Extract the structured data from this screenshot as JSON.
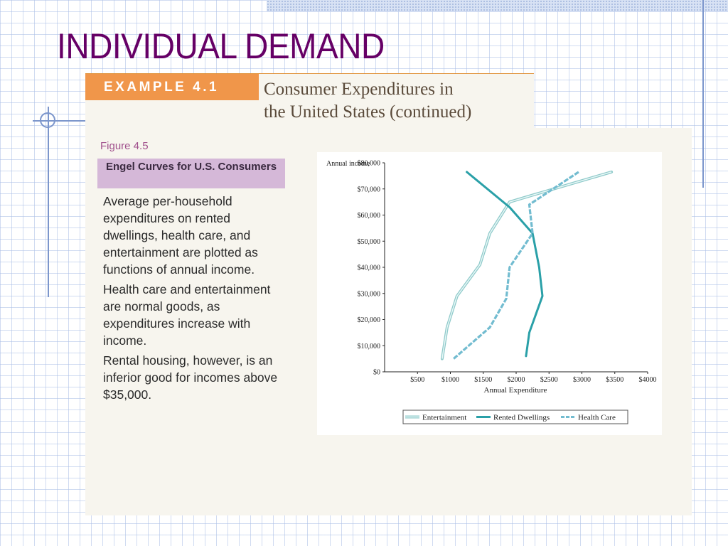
{
  "slide": {
    "title": "INDIVIDUAL DEMAND",
    "example_label": "EXAMPLE 4.1",
    "example_title_line1": "Consumer Expenditures in",
    "example_title_line2": "the United States (continued)",
    "figure_number": "Figure 4.5",
    "figure_caption": "Engel Curves for U.S. Consumers",
    "paragraphs": [
      "Average per-household expenditures on rented dwellings, health care, and entertainment are plotted as functions of annual income.",
      "Health care and entertainment are normal goods, as expenditures increase with income.",
      "Rental housing, however, is an inferior good for incomes above $35,000."
    ]
  },
  "chart_data": {
    "type": "line",
    "xlabel": "Annual Expenditure",
    "ylabel": "Annual income",
    "xlim": [
      0,
      4000
    ],
    "ylim": [
      0,
      80000
    ],
    "x_ticks": [
      500,
      1000,
      1500,
      2000,
      2500,
      3000,
      3500,
      4000
    ],
    "x_tick_labels": [
      "$500",
      "$1000",
      "$1500",
      "$2000",
      "$2500",
      "$3000",
      "$3500",
      "$4000"
    ],
    "y_ticks": [
      0,
      10000,
      20000,
      30000,
      40000,
      50000,
      60000,
      70000,
      80000
    ],
    "y_tick_labels": [
      "$0",
      "$10,000",
      "$20,000",
      "$30,000",
      "$40,000",
      "$50,000",
      "$60,000",
      "$70,000",
      "$80,000"
    ],
    "legend_position": "bottom",
    "series": [
      {
        "name": "Entertainment",
        "style": "solid-light",
        "color": "#9fd8d8",
        "points": [
          [
            875,
            5000
          ],
          [
            950,
            17000
          ],
          [
            1100,
            29000
          ],
          [
            1450,
            41000
          ],
          [
            1600,
            53000
          ],
          [
            1900,
            65000
          ],
          [
            2300,
            68000
          ],
          [
            3450,
            76500
          ]
        ]
      },
      {
        "name": "Rented Dwellings",
        "style": "solid-dark",
        "color": "#2aa0a8",
        "points": [
          [
            2150,
            6000
          ],
          [
            2200,
            15000
          ],
          [
            2400,
            29000
          ],
          [
            2350,
            40000
          ],
          [
            2250,
            53000
          ],
          [
            1900,
            63000
          ],
          [
            1250,
            76500
          ]
        ]
      },
      {
        "name": "Health Care",
        "style": "dashed",
        "color": "#72bcd0",
        "points": [
          [
            1050,
            5000
          ],
          [
            1600,
            17000
          ],
          [
            1850,
            28000
          ],
          [
            1900,
            40000
          ],
          [
            2250,
            53000
          ],
          [
            2200,
            64000
          ],
          [
            2950,
            76500
          ]
        ]
      }
    ]
  }
}
